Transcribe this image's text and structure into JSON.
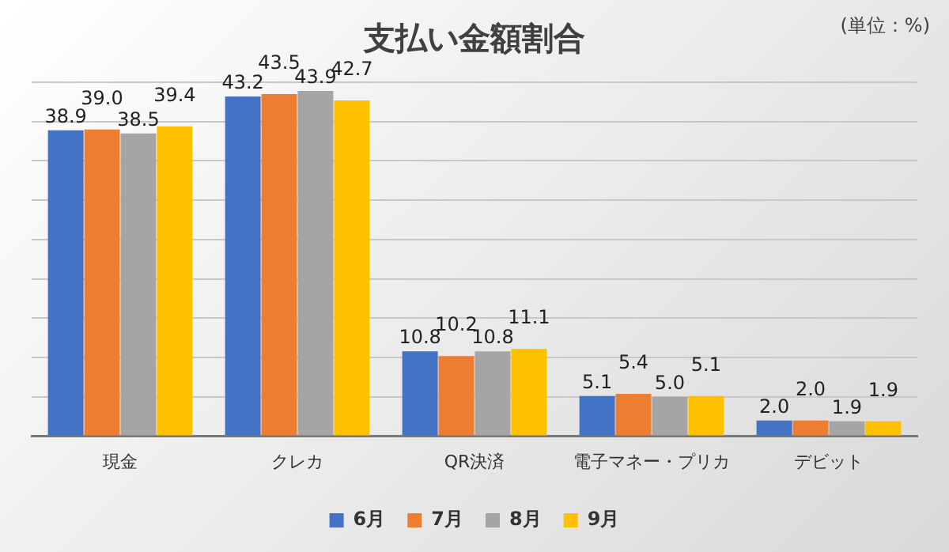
{
  "chart_data": {
    "type": "bar",
    "title": "支払い金額割合",
    "annotations": [
      "(単位：%)"
    ],
    "categories": [
      "現金",
      "クレカ",
      "QR決済",
      "電子マネー・プリカ",
      "デビット"
    ],
    "series": [
      {
        "name": "6月",
        "color": "#4472c4",
        "values": [
          38.9,
          43.2,
          10.8,
          5.1,
          2.0
        ],
        "value_labels": [
          "38.9",
          "43.2",
          "10.8",
          "5.1",
          "2.0"
        ]
      },
      {
        "name": "7月",
        "color": "#ed7d31",
        "values": [
          39.0,
          43.5,
          10.2,
          5.4,
          2.0
        ],
        "value_labels": [
          "39.0",
          "43.5",
          "10.2",
          "5.4",
          "2.0"
        ]
      },
      {
        "name": "8月",
        "color": "#a5a5a5",
        "values": [
          38.5,
          43.9,
          10.8,
          5.0,
          1.9
        ],
        "value_labels": [
          "38.5",
          "43.9",
          "10.8",
          "5.0",
          "1.9"
        ]
      },
      {
        "name": "9月",
        "color": "#ffc000",
        "values": [
          39.4,
          42.7,
          11.1,
          5.1,
          1.9
        ],
        "value_labels": [
          "39.4",
          "42.7",
          "11.1",
          "5.1",
          "1.9"
        ]
      }
    ],
    "tick_labels": "x",
    "grid": "y",
    "legend": "bottom"
  }
}
